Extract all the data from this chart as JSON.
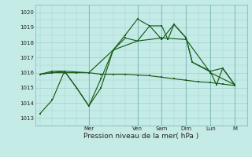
{
  "background_color": "#c5ebe7",
  "grid_color": "#9ecfcb",
  "line_color": "#1a5c1a",
  "xlabel": "Pression niveau de la mer( hPa )",
  "ylim": [
    1012.5,
    1020.5
  ],
  "yticks": [
    1013,
    1014,
    1015,
    1016,
    1017,
    1018,
    1019,
    1020
  ],
  "day_labels": [
    "Mer",
    "Ven",
    "Sam",
    "Dim",
    "Lun",
    "M"
  ],
  "day_positions": [
    2,
    4,
    5,
    6,
    7,
    8
  ],
  "series1_x": [
    0,
    0.5,
    1,
    1.5,
    2,
    2.5,
    3,
    3.5,
    4,
    4.5,
    5,
    5.25,
    5.5,
    6,
    6.25,
    7,
    7.25,
    7.5,
    8
  ],
  "series1_y": [
    1013.3,
    1014.2,
    1016.1,
    1015.0,
    1013.8,
    1015.6,
    1017.5,
    1018.5,
    1019.55,
    1019.1,
    1019.1,
    1018.2,
    1019.2,
    1018.3,
    1016.7,
    1016.05,
    1015.2,
    1016.3,
    1015.2
  ],
  "series2_x": [
    0,
    0.5,
    1,
    1.5,
    2,
    2.5,
    3,
    3.5,
    4,
    4.5,
    5,
    5.5,
    6,
    6.25,
    7,
    7.5,
    8
  ],
  "series2_y": [
    1015.9,
    1016.1,
    1016.1,
    1015.0,
    1013.8,
    1015.0,
    1017.5,
    1018.3,
    1018.1,
    1019.1,
    1018.2,
    1019.2,
    1018.3,
    1016.7,
    1016.1,
    1016.3,
    1015.2
  ],
  "series3_x": [
    0,
    1,
    2,
    3,
    4,
    5,
    6,
    7,
    8
  ],
  "series3_y": [
    1015.9,
    1016.1,
    1016.0,
    1017.5,
    1018.1,
    1018.3,
    1018.2,
    1016.0,
    1015.2
  ],
  "series4_x": [
    0,
    0.5,
    1,
    1.5,
    2,
    2.5,
    3,
    3.5,
    4,
    4.5,
    5,
    5.5,
    6,
    6.5,
    7,
    7.5,
    8
  ],
  "series4_y": [
    1015.9,
    1016.0,
    1016.0,
    1016.0,
    1016.0,
    1015.9,
    1015.9,
    1015.9,
    1015.85,
    1015.8,
    1015.7,
    1015.6,
    1015.5,
    1015.4,
    1015.35,
    1015.25,
    1015.15
  ]
}
